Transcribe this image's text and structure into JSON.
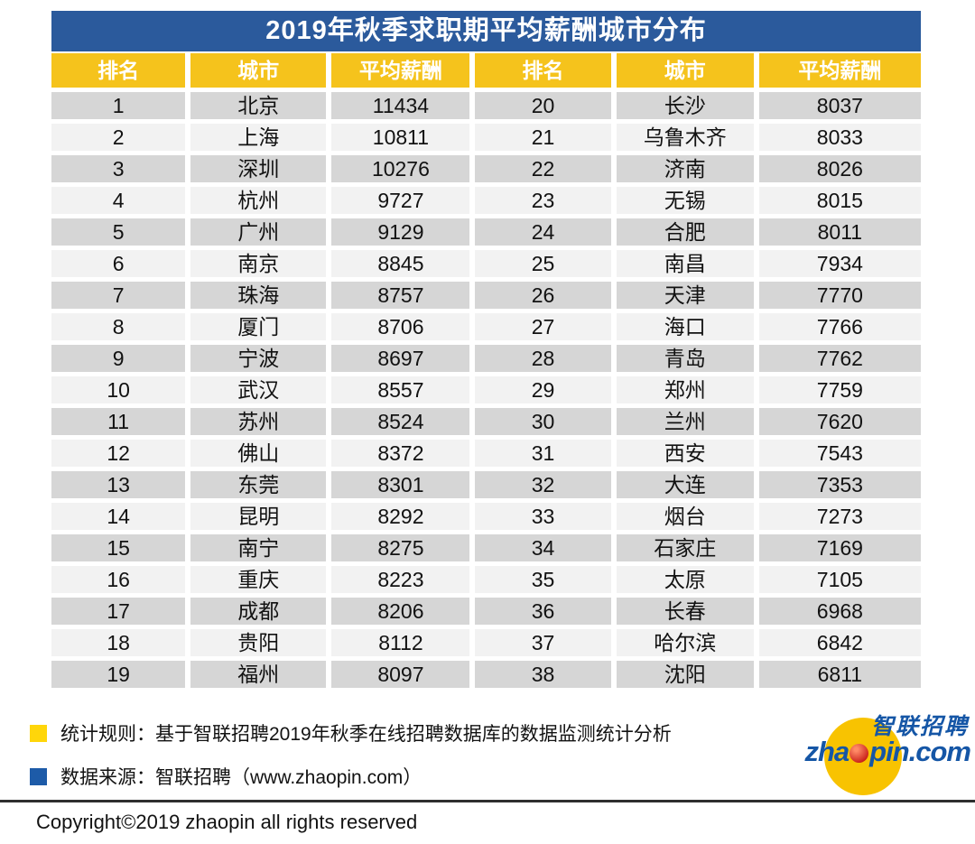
{
  "title": "2019年秋季求职期平均薪酬城市分布",
  "chart_data": {
    "type": "table",
    "title": "2019年秋季求职期平均薪酬城市分布",
    "columns": [
      "排名",
      "城市",
      "平均薪酬"
    ],
    "rows": [
      [
        1,
        "北京",
        11434
      ],
      [
        2,
        "上海",
        10811
      ],
      [
        3,
        "深圳",
        10276
      ],
      [
        4,
        "杭州",
        9727
      ],
      [
        5,
        "广州",
        9129
      ],
      [
        6,
        "南京",
        8845
      ],
      [
        7,
        "珠海",
        8757
      ],
      [
        8,
        "厦门",
        8706
      ],
      [
        9,
        "宁波",
        8697
      ],
      [
        10,
        "武汉",
        8557
      ],
      [
        11,
        "苏州",
        8524
      ],
      [
        12,
        "佛山",
        8372
      ],
      [
        13,
        "东莞",
        8301
      ],
      [
        14,
        "昆明",
        8292
      ],
      [
        15,
        "南宁",
        8275
      ],
      [
        16,
        "重庆",
        8223
      ],
      [
        17,
        "成都",
        8206
      ],
      [
        18,
        "贵阳",
        8112
      ],
      [
        19,
        "福州",
        8097
      ],
      [
        20,
        "长沙",
        8037
      ],
      [
        21,
        "乌鲁木齐",
        8033
      ],
      [
        22,
        "济南",
        8026
      ],
      [
        23,
        "无锡",
        8015
      ],
      [
        24,
        "合肥",
        8011
      ],
      [
        25,
        "南昌",
        7934
      ],
      [
        26,
        "天津",
        7770
      ],
      [
        27,
        "海口",
        7766
      ],
      [
        28,
        "青岛",
        7762
      ],
      [
        29,
        "郑州",
        7759
      ],
      [
        30,
        "兰州",
        7620
      ],
      [
        31,
        "西安",
        7543
      ],
      [
        32,
        "大连",
        7353
      ],
      [
        33,
        "烟台",
        7273
      ],
      [
        34,
        "石家庄",
        7169
      ],
      [
        35,
        "太原",
        7105
      ],
      [
        36,
        "长春",
        6968
      ],
      [
        37,
        "哈尔滨",
        6842
      ],
      [
        38,
        "沈阳",
        6811
      ]
    ],
    "layout": {
      "split_columns": 2,
      "rows_per_column": 19,
      "striped": true
    }
  },
  "notes": [
    {
      "bullet_color": "#ffd60a",
      "text": "统计规则：基于智联招聘2019年秋季在线招聘数据库的数据监测统计分析"
    },
    {
      "bullet_color": "#1d5ba8",
      "text": "数据来源：智联招聘（www.zhaopin.com）"
    }
  ],
  "logo": {
    "cn": "智联招聘",
    "en_prefix": "zha",
    "en_suffix": "pin.com"
  },
  "copyright": "Copyright©2019 zhaopin all rights reserved",
  "colors": {
    "title_bar": "#2b5a9c",
    "header_bg": "#f5c31c",
    "header_text": "#ffffff",
    "row_dark": "#d6d6d6",
    "row_light": "#f2f2f2",
    "note_bullet_yellow": "#ffd60a",
    "note_bullet_blue": "#1d5ba8",
    "logo_blue": "#1556a6",
    "logo_yellow": "#f8c301",
    "logo_red": "#c9201a"
  }
}
